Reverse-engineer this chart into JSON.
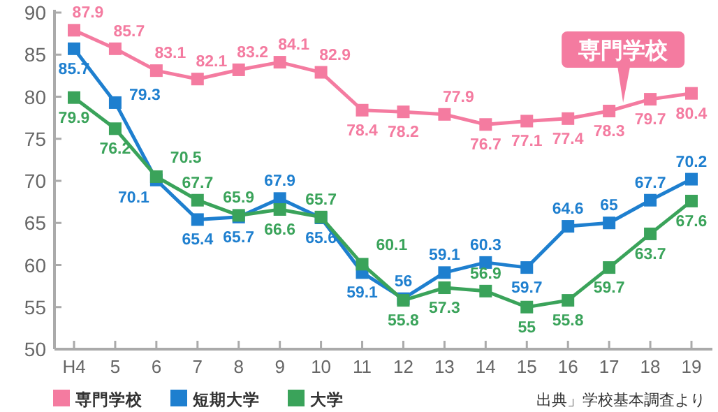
{
  "chart_data": {
    "type": "line",
    "categories": [
      "H4",
      "5",
      "6",
      "7",
      "8",
      "9",
      "10",
      "11",
      "12",
      "13",
      "14",
      "15",
      "16",
      "17",
      "18",
      "19"
    ],
    "series": [
      {
        "name": "専門学校",
        "color": "#f47ba0",
        "values": [
          87.9,
          85.7,
          83.1,
          82.1,
          83.2,
          84.1,
          82.9,
          78.4,
          78.2,
          77.9,
          76.7,
          77.1,
          77.4,
          78.3,
          79.7,
          80.4
        ]
      },
      {
        "name": "短期大学",
        "color": "#1e7fcf",
        "values": [
          85.7,
          79.3,
          70.1,
          65.4,
          65.7,
          67.9,
          65.6,
          59.1,
          56,
          59.1,
          60.3,
          59.7,
          64.6,
          65,
          67.7,
          70.2
        ]
      },
      {
        "name": "大学",
        "color": "#3aa35a",
        "values": [
          79.9,
          76.2,
          70.5,
          67.7,
          65.9,
          66.6,
          65.7,
          60.1,
          55.8,
          57.3,
          56.9,
          55,
          55.8,
          59.7,
          63.7,
          67.6
        ]
      }
    ],
    "ylim": [
      50,
      90
    ],
    "yticks": [
      50,
      55,
      60,
      65,
      70,
      75,
      80,
      85,
      90
    ],
    "data_labels": true,
    "marker": "square",
    "line_style": "solid",
    "grid": false,
    "legend": "bottom left",
    "annotations": [
      {
        "text": "専門学校",
        "x": "17",
        "y": 78.3
      },
      "出典」学校基本調査より"
    ]
  }
}
